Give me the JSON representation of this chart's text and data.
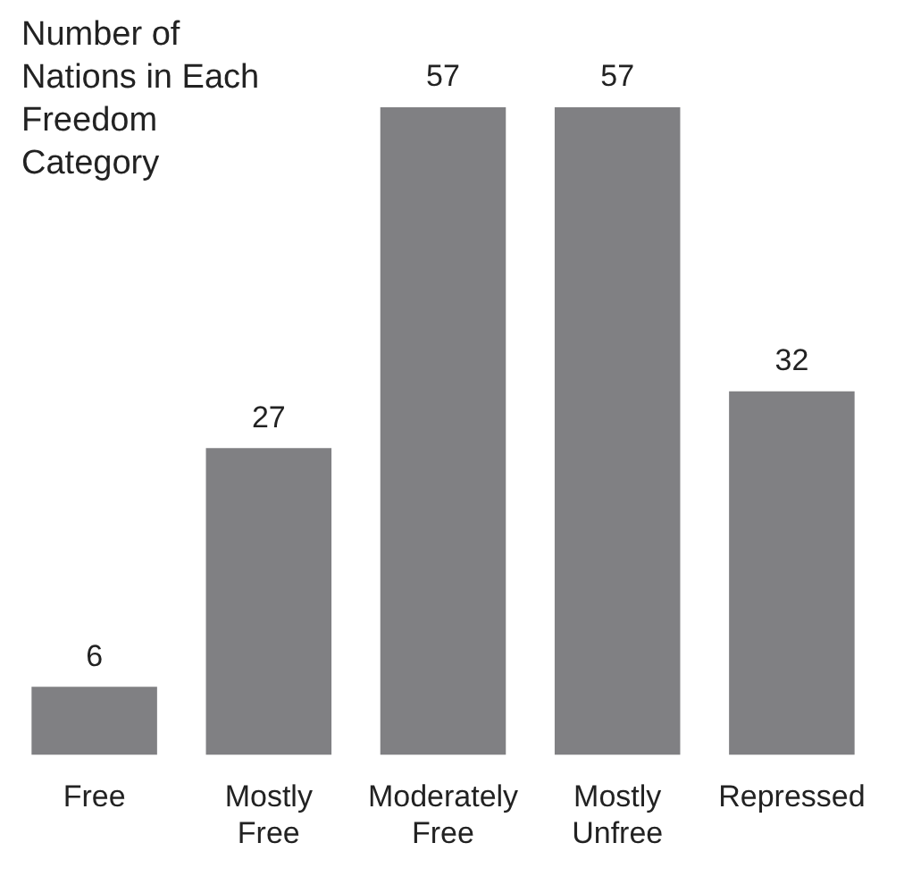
{
  "chart_data": {
    "type": "bar",
    "title": "Number of Nations in Each Freedom Category",
    "categories": [
      "Free",
      "Mostly Free",
      "Moderately Free",
      "Mostly Unfree",
      "Repressed"
    ],
    "values": [
      6,
      27,
      57,
      57,
      32
    ],
    "color": "#808083",
    "data_labels": true,
    "grid": false,
    "legend": false
  }
}
